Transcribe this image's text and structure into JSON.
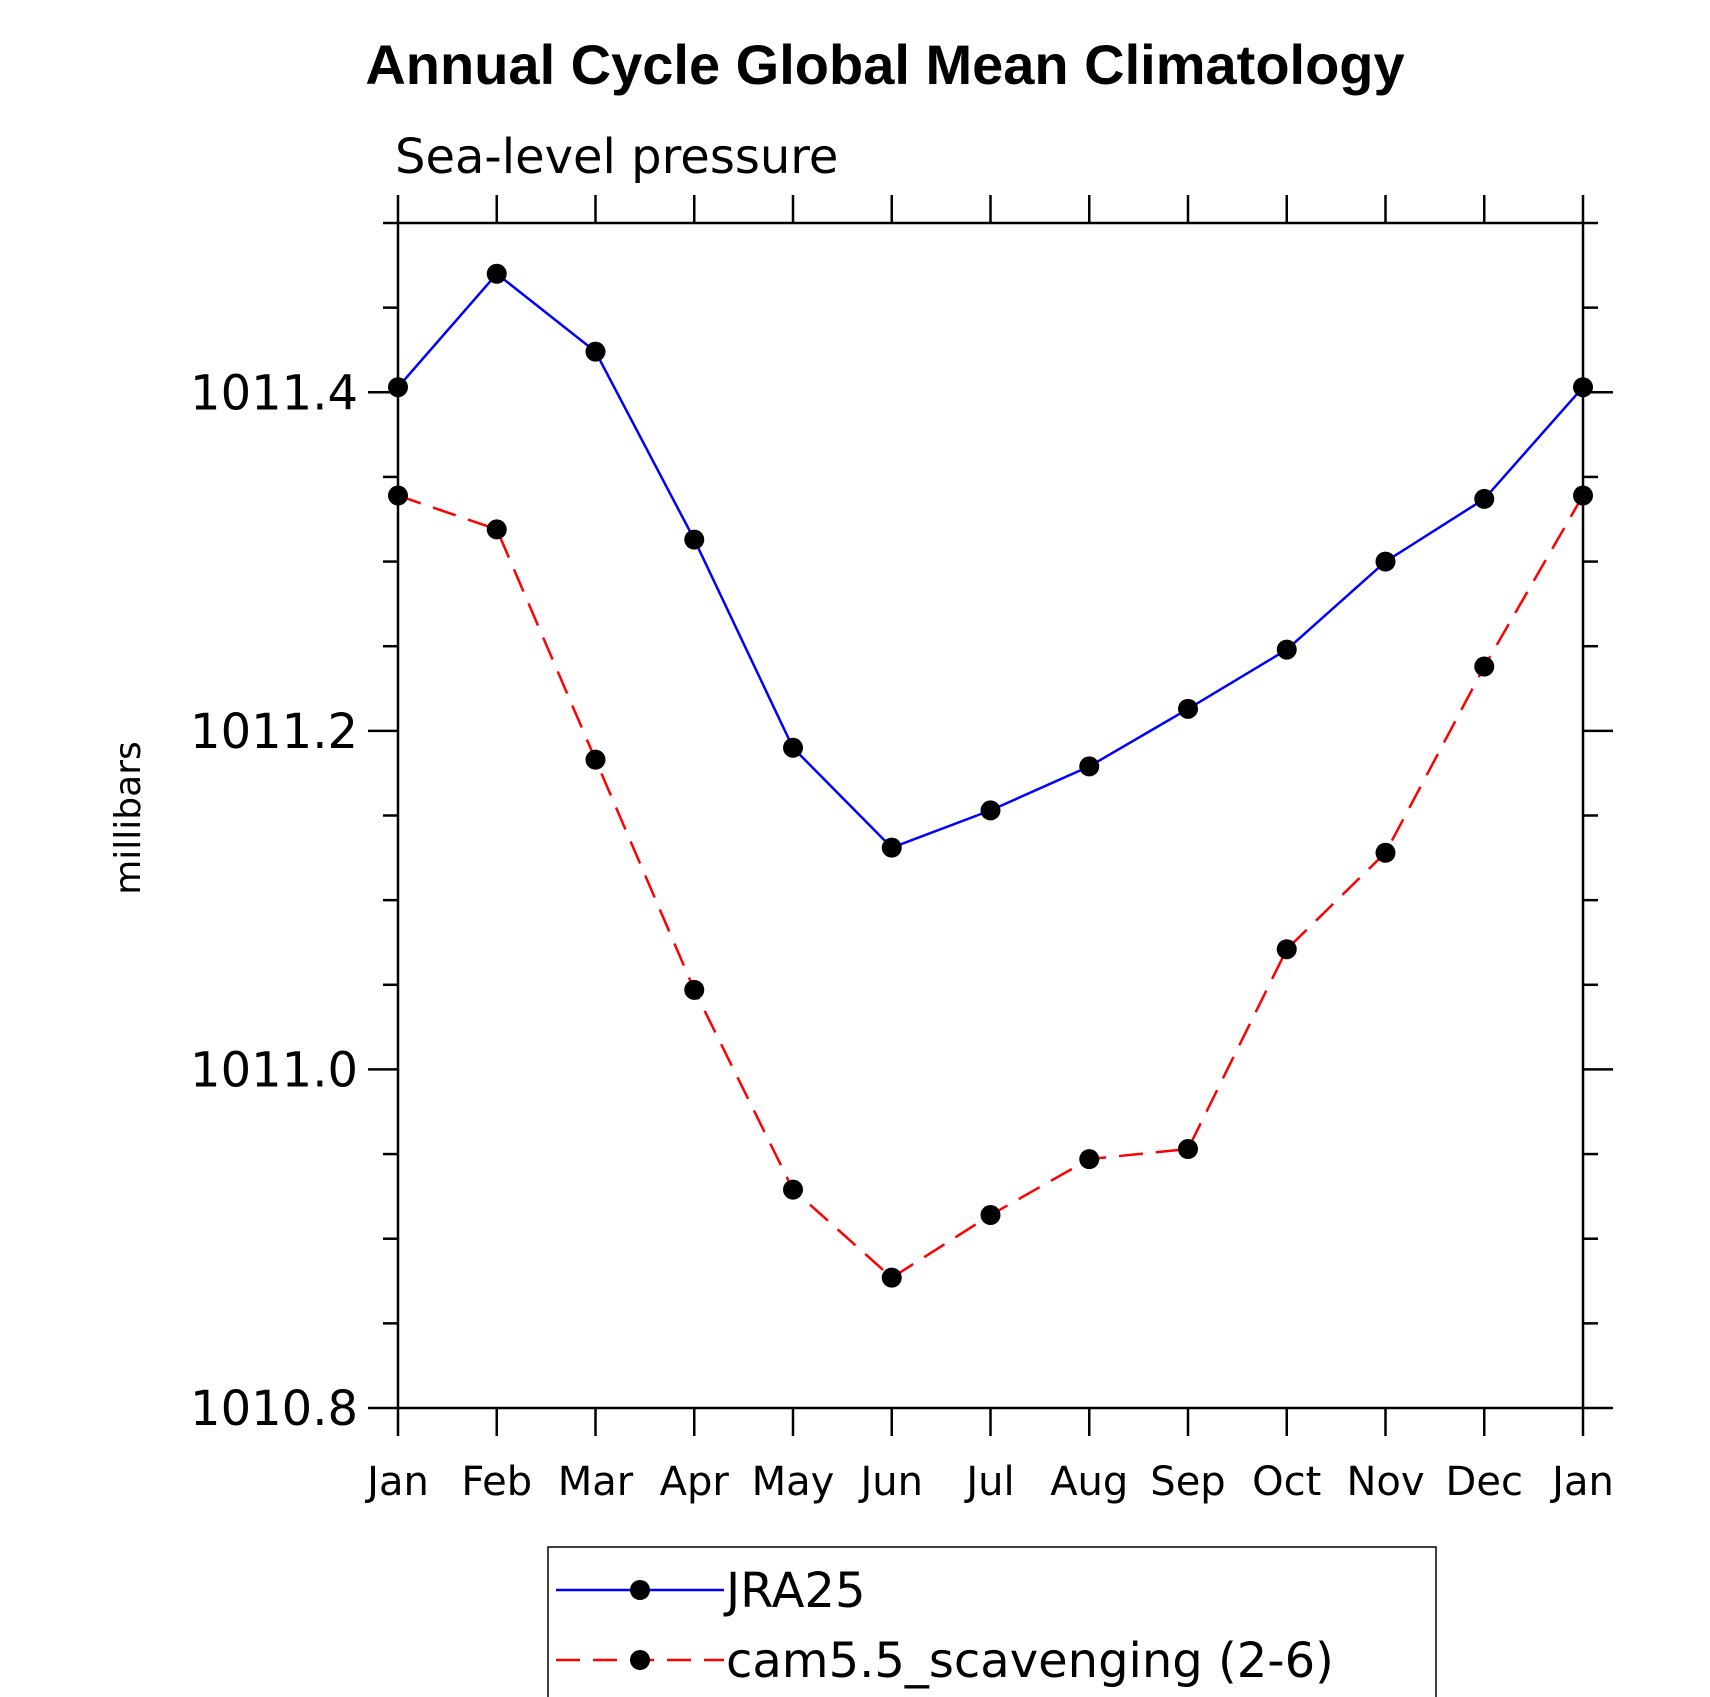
{
  "chart_data": {
    "type": "line",
    "title": "Annual Cycle Global Mean Climatology",
    "subtitle": "Sea-level pressure",
    "xlabel": "",
    "ylabel": "millibars",
    "categories": [
      "Jan",
      "Feb",
      "Mar",
      "Apr",
      "May",
      "Jun",
      "Jul",
      "Aug",
      "Sep",
      "Oct",
      "Nov",
      "Dec",
      "Jan"
    ],
    "ylim": [
      1010.8,
      1011.5
    ],
    "yticks_major": [
      1010.8,
      1011.0,
      1011.2,
      1011.4
    ],
    "ytick_labels": [
      "1010.8",
      "1011.0",
      "1011.2",
      "1011.4"
    ],
    "yticks_minor_step": 0.05,
    "grid": false,
    "legend_position": "bottom-center",
    "series": [
      {
        "name": "JRA25",
        "color": "#0000ff",
        "dash": "solid",
        "marker": "filled-circle",
        "values": [
          1011.403,
          1011.47,
          1011.424,
          1011.313,
          1011.19,
          1011.131,
          1011.153,
          1011.179,
          1011.213,
          1011.248,
          1011.3,
          1011.337,
          1011.403
        ]
      },
      {
        "name": "cam5.5_scavenging (2-6)",
        "color": "#ff0000",
        "dash": "dashed",
        "marker": "filled-circle",
        "values": [
          1011.339,
          1011.319,
          1011.183,
          1011.047,
          1010.929,
          1010.877,
          1010.914,
          1010.947,
          1010.953,
          1011.071,
          1011.128,
          1011.238,
          1011.339
        ]
      }
    ]
  }
}
